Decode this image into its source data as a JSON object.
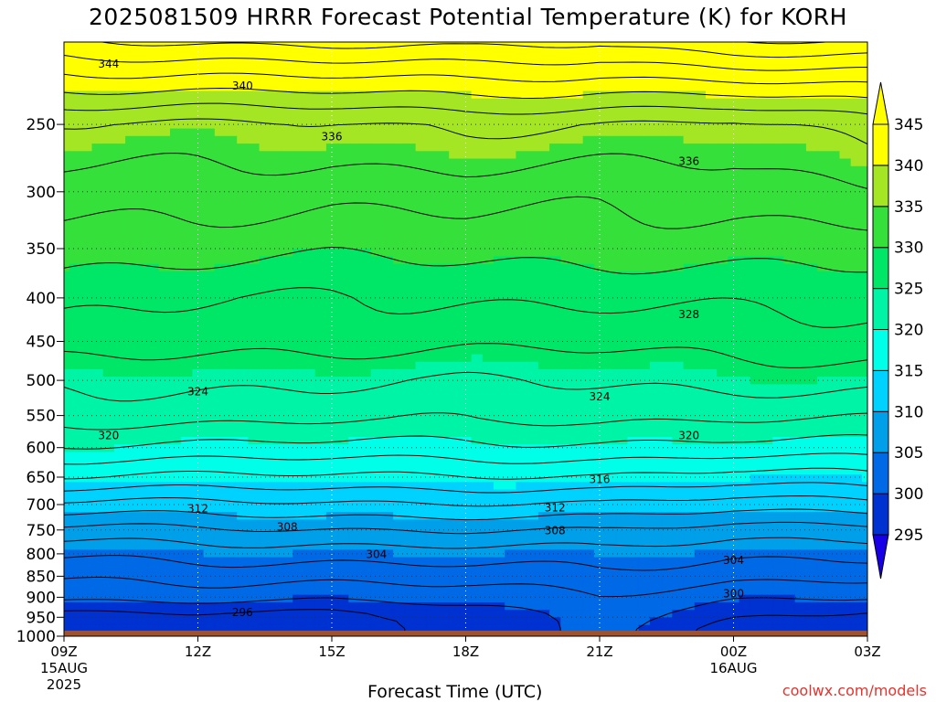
{
  "chart_data": {
    "type": "heatmap",
    "title": "2025081509 HRRR Forecast Potential Temperature (K) for KORH",
    "xlabel": "Forecast Time (UTC)",
    "ylabel": "",
    "x_ticks": [
      {
        "hour": 0,
        "label": "09Z",
        "sub": [
          "15AUG",
          "2025"
        ]
      },
      {
        "hour": 3,
        "label": "12Z",
        "sub": []
      },
      {
        "hour": 6,
        "label": "15Z",
        "sub": []
      },
      {
        "hour": 9,
        "label": "18Z",
        "sub": []
      },
      {
        "hour": 12,
        "label": "21Z",
        "sub": []
      },
      {
        "hour": 15,
        "label": "00Z",
        "sub": [
          "16AUG"
        ]
      },
      {
        "hour": 18,
        "label": "03Z",
        "sub": []
      }
    ],
    "xlim": [
      0,
      18
    ],
    "y_scale": "log",
    "ylim": [
      1000,
      200
    ],
    "y_ticks": [
      250,
      300,
      350,
      400,
      450,
      500,
      550,
      600,
      650,
      700,
      750,
      800,
      850,
      900,
      950,
      1000
    ],
    "grid": true,
    "surface_pressure_hPa": 985,
    "surface_color": "#a0522d",
    "colorbar": {
      "levels": [
        295,
        300,
        305,
        310,
        315,
        320,
        325,
        330,
        335,
        340,
        345
      ],
      "colors": [
        "#1800e6",
        "#0031d1",
        "#0069e6",
        "#009fea",
        "#00d2ff",
        "#00ffe8",
        "#00f4a6",
        "#00e666",
        "#35e03a",
        "#a4e623",
        "#ffff00"
      ]
    },
    "contour_interval_K": 2,
    "contour_labels": [
      {
        "value": 344,
        "hour": 1.0,
        "p": 212
      },
      {
        "value": 340,
        "hour": 4.0,
        "p": 225
      },
      {
        "value": 336,
        "hour": 6.0,
        "p": 258
      },
      {
        "value": 336,
        "hour": 14.0,
        "p": 276
      },
      {
        "value": 328,
        "hour": 14.0,
        "p": 418
      },
      {
        "value": 324,
        "hour": 3.0,
        "p": 515
      },
      {
        "value": 324,
        "hour": 12.0,
        "p": 522
      },
      {
        "value": 320,
        "hour": 1.0,
        "p": 580
      },
      {
        "value": 320,
        "hour": 14.0,
        "p": 580
      },
      {
        "value": 316,
        "hour": 12.0,
        "p": 653
      },
      {
        "value": 312,
        "hour": 3.0,
        "p": 707
      },
      {
        "value": 312,
        "hour": 11.0,
        "p": 705
      },
      {
        "value": 308,
        "hour": 5.0,
        "p": 743
      },
      {
        "value": 308,
        "hour": 11.0,
        "p": 750
      },
      {
        "value": 304,
        "hour": 7.0,
        "p": 800
      },
      {
        "value": 304,
        "hour": 15.0,
        "p": 813
      },
      {
        "value": 300,
        "hour": 15.0,
        "p": 890
      },
      {
        "value": 296,
        "hour": 4.0,
        "p": 937
      }
    ],
    "profile_hours": [
      0,
      1,
      2,
      3,
      4,
      5,
      6,
      7,
      8,
      9,
      10,
      11,
      12,
      13,
      14,
      15,
      16,
      17,
      18
    ],
    "profiles": [
      {
        "hour": 0,
        "p": [
          985,
          950,
          900,
          850,
          800,
          750,
          700,
          650,
          600,
          550,
          500,
          450,
          400,
          350,
          300,
          250,
          210
        ],
        "theta": [
          296,
          296.9,
          300.5,
          302.3,
          304.5,
          307.5,
          311.5,
          315.8,
          319.6,
          322.9,
          324.6,
          327.2,
          328.6,
          330.8,
          333.1,
          335.8,
          343.5
        ]
      },
      {
        "hour": 6,
        "p": [
          985,
          950,
          900,
          850,
          800,
          750,
          700,
          650,
          600,
          550,
          500,
          450,
          400,
          350,
          300,
          250,
          210
        ],
        "theta": [
          296.8,
          297.2,
          300.6,
          302.7,
          304.8,
          307.8,
          311.6,
          315.7,
          319.4,
          322.6,
          324.2,
          326.5,
          328.0,
          330.5,
          332.6,
          335.9,
          344.2
        ]
      },
      {
        "hour": 9,
        "p": [
          985,
          950,
          900,
          850,
          800,
          750,
          700,
          650,
          600,
          550,
          500,
          450,
          400,
          350,
          300,
          250,
          210
        ],
        "theta": [
          298.5,
          298.8,
          300.9,
          303.0,
          305.1,
          308.1,
          311.7,
          315.6,
          319.4,
          322.5,
          324.0,
          326.4,
          328.1,
          330.7,
          333.0,
          336.2,
          344.5
        ]
      },
      {
        "hour": 12,
        "p": [
          985,
          950,
          900,
          850,
          800,
          750,
          700,
          650,
          600,
          550,
          500,
          450,
          400,
          350,
          300,
          250,
          210
        ],
        "theta": [
          300.3,
          300.5,
          301.6,
          303.4,
          305.3,
          308.2,
          311.9,
          315.9,
          319.5,
          322.6,
          324.3,
          326.6,
          328.3,
          330.6,
          332.7,
          336.0,
          344.0
        ]
      },
      {
        "hour": 15,
        "p": [
          985,
          950,
          900,
          850,
          800,
          750,
          700,
          650,
          600,
          550,
          500,
          450,
          400,
          350,
          300,
          250,
          210
        ],
        "theta": [
          297.3,
          298.3,
          300.3,
          302.5,
          304.3,
          307.0,
          311.0,
          315.2,
          319.2,
          322.2,
          324.6,
          327.0,
          328.6,
          330.8,
          332.8,
          335.7,
          345.0
        ]
      },
      {
        "hour": 18,
        "p": [
          985,
          950,
          900,
          850,
          800,
          750,
          700,
          650,
          600,
          550,
          500,
          450,
          400,
          350,
          300,
          250,
          210
        ],
        "theta": [
          296.2,
          297.4,
          300.2,
          302.5,
          304.4,
          307.0,
          311.1,
          315.4,
          319.4,
          322.4,
          324.7,
          327.1,
          328.7,
          331.0,
          333.5,
          337.0,
          345.5
        ]
      }
    ]
  },
  "footer": {
    "credit": "coolwx.com/models"
  }
}
